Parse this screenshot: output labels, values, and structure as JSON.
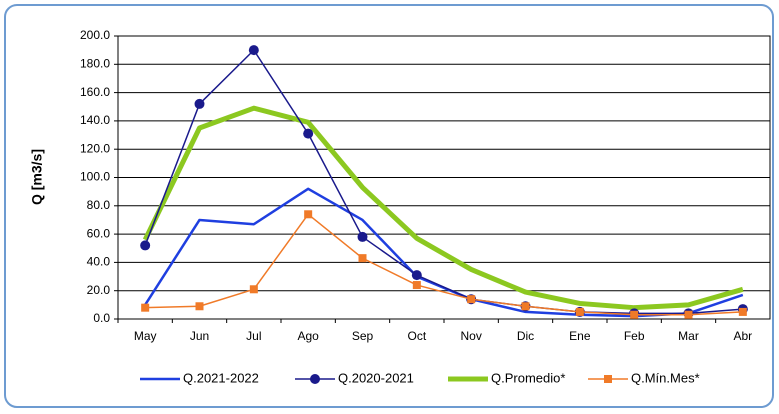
{
  "chart_data": {
    "type": "line",
    "y_label": "Q [m3/s]",
    "categories": [
      "May",
      "Jun",
      "Jul",
      "Ago",
      "Sep",
      "Oct",
      "Nov",
      "Dic",
      "Ene",
      "Feb",
      "Mar",
      "Abr"
    ],
    "series": [
      {
        "name": "Q.2021-2022",
        "color": "#1f3fe0",
        "width": 2.5,
        "marker": "none",
        "values": [
          10,
          70,
          67,
          92,
          70,
          30,
          14,
          5,
          3,
          2,
          4,
          17
        ]
      },
      {
        "name": "Q.2020-2021",
        "color": "#1a1a8c",
        "width": 1.5,
        "marker": "circle",
        "values": [
          52,
          152,
          190,
          131,
          58,
          31,
          14,
          9,
          5,
          4,
          4,
          7
        ]
      },
      {
        "name": "Q.Promedio*",
        "color": "#8cc820",
        "width": 5,
        "marker": "none",
        "values": [
          56,
          135,
          149,
          139,
          93,
          57,
          35,
          19,
          11,
          8,
          10,
          21
        ]
      },
      {
        "name": "Q.Mín.Mes*",
        "color": "#f07a28",
        "width": 1.5,
        "marker": "square",
        "values": [
          8,
          9,
          21,
          74,
          43,
          24,
          14,
          9,
          5,
          3,
          3,
          5
        ]
      }
    ],
    "ylim": [
      0,
      200
    ],
    "yticks": [
      {
        "value": 0,
        "label": "0.0"
      },
      {
        "value": 20,
        "label": "20.0"
      },
      {
        "value": 40,
        "label": "40.0"
      },
      {
        "value": 60,
        "label": "60.0"
      },
      {
        "value": 80,
        "label": "80.0"
      },
      {
        "value": 100,
        "label": "100.0"
      },
      {
        "value": 120,
        "label": "120.0"
      },
      {
        "value": 140,
        "label": "140.0"
      },
      {
        "value": 160,
        "label": "160.0"
      },
      {
        "value": 180,
        "label": "180.0"
      },
      {
        "value": 200,
        "label": "200.0"
      }
    ],
    "grid": true
  }
}
